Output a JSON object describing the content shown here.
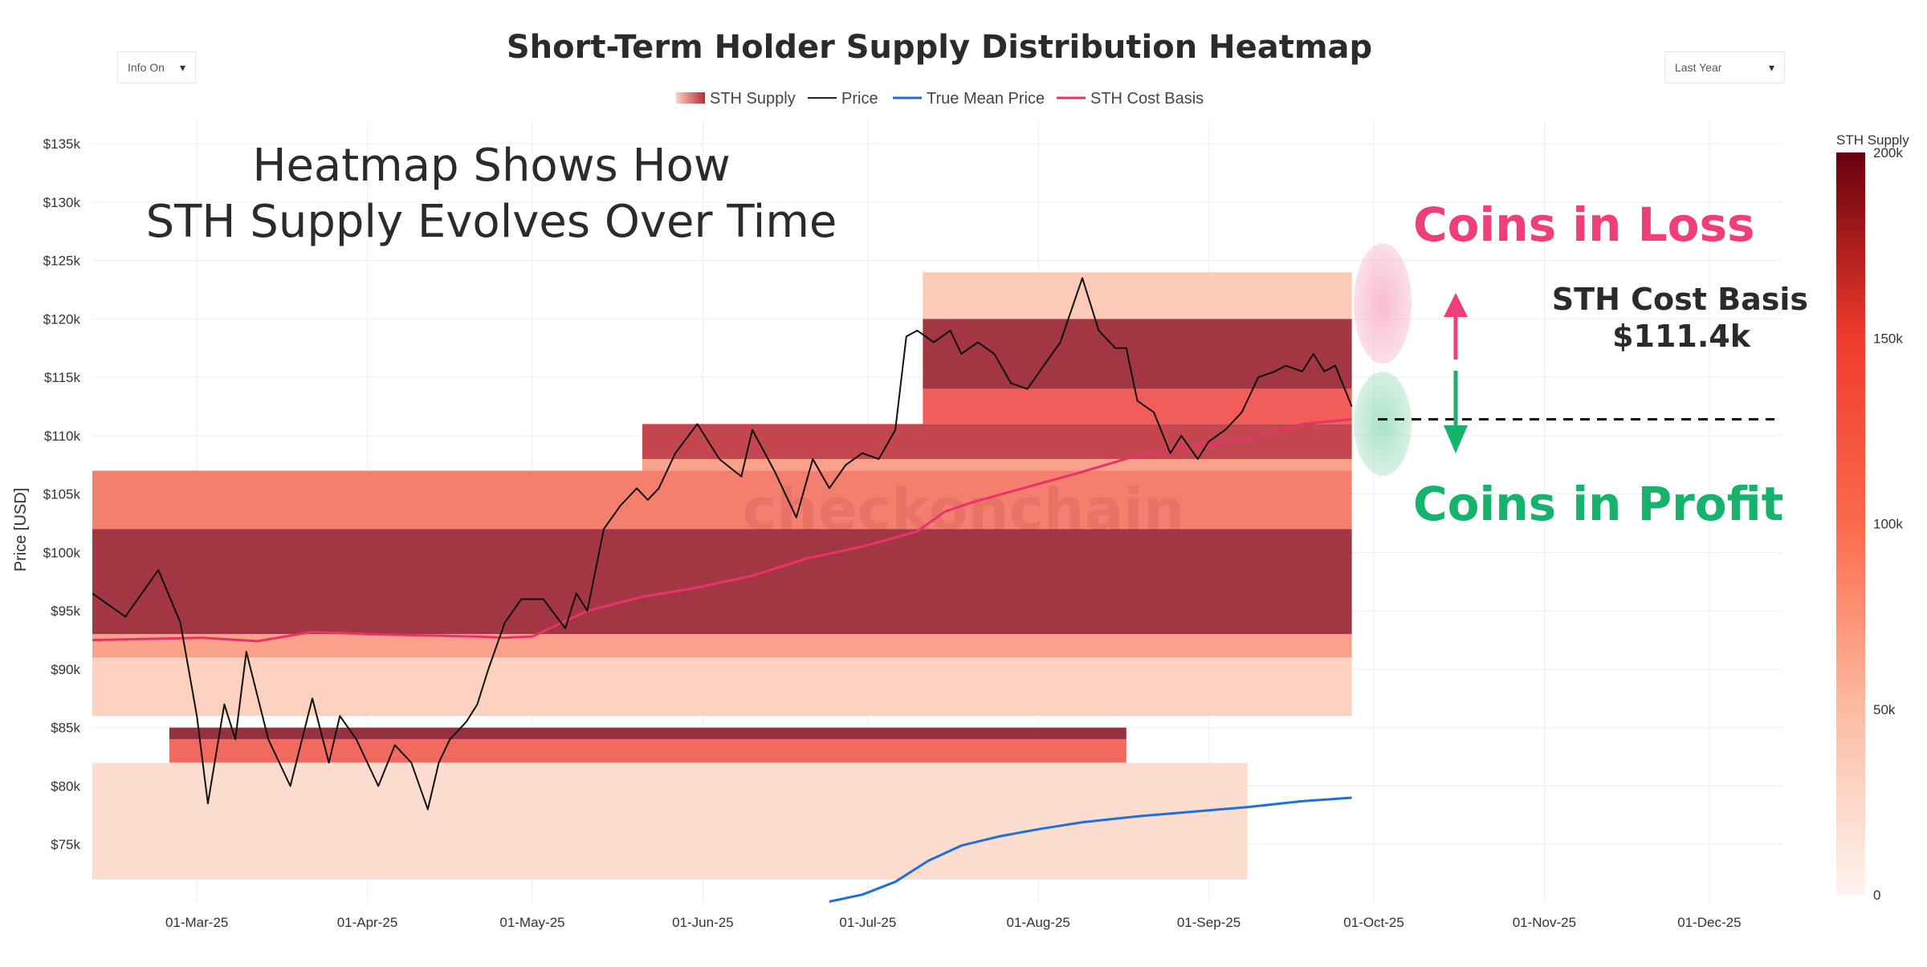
{
  "controls": {
    "info_toggle": "Info On",
    "range_select": "Last Year",
    "caret": "▾"
  },
  "chart_data": {
    "type": "heatmap",
    "title": "Short-Term Holder Supply Distribution Heatmap",
    "ylabel": "Price [USD]",
    "xlabel": "",
    "legend": [
      "STH Supply",
      "Price",
      "True Mean Price",
      "STH Cost Basis"
    ],
    "legend_position": "top-center",
    "colors": {
      "price": "#111111",
      "true_mean_price": "#1e6fd9",
      "sth_cost_basis": "#e8336a",
      "heat_low": "#fdeae2",
      "heat_mid": "#f0584f",
      "heat_high": "#8b1d2c",
      "loss": "#ef3f76",
      "profit": "#16b36d"
    },
    "ylim": [
      70000,
      137000
    ],
    "y_ticks": [
      {
        "value": 75000,
        "label": "$75k"
      },
      {
        "value": 80000,
        "label": "$80k"
      },
      {
        "value": 85000,
        "label": "$85k"
      },
      {
        "value": 90000,
        "label": "$90k"
      },
      {
        "value": 95000,
        "label": "$95k"
      },
      {
        "value": 100000,
        "label": "$100k"
      },
      {
        "value": 105000,
        "label": "$105k"
      },
      {
        "value": 110000,
        "label": "$110k"
      },
      {
        "value": 115000,
        "label": "$115k"
      },
      {
        "value": 120000,
        "label": "$120k"
      },
      {
        "value": 125000,
        "label": "$125k"
      },
      {
        "value": 130000,
        "label": "$130k"
      },
      {
        "value": 135000,
        "label": "$135k"
      }
    ],
    "x_range_days": [
      0,
      306
    ],
    "x_ticks": [
      {
        "day": 19,
        "label": "01-Mar-25"
      },
      {
        "day": 50,
        "label": "01-Apr-25"
      },
      {
        "day": 80,
        "label": "01-May-25"
      },
      {
        "day": 111,
        "label": "01-Jun-25"
      },
      {
        "day": 141,
        "label": "01-Jul-25"
      },
      {
        "day": 172,
        "label": "01-Aug-25"
      },
      {
        "day": 203,
        "label": "01-Sep-25"
      },
      {
        "day": 233,
        "label": "01-Oct-25"
      },
      {
        "day": 264,
        "label": "01-Nov-25"
      },
      {
        "day": 294,
        "label": "01-Dec-25"
      }
    ],
    "colorbar": {
      "title": "STH Supply",
      "range": [
        0,
        200000
      ],
      "ticks": [
        {
          "value": 0,
          "label": "0"
        },
        {
          "value": 50000,
          "label": "50k"
        },
        {
          "value": 100000,
          "label": "100k"
        },
        {
          "value": 150000,
          "label": "150k"
        },
        {
          "value": 200000,
          "label": "200k"
        }
      ]
    },
    "heatmap_bands": [
      {
        "from_day": 0,
        "to_day": 229,
        "low": 102000,
        "high": 107000,
        "supply": 90000
      },
      {
        "from_day": 0,
        "to_day": 229,
        "low": 93000,
        "high": 102000,
        "supply": 180000
      },
      {
        "from_day": 0,
        "to_day": 229,
        "low": 91000,
        "high": 93000,
        "supply": 60000
      },
      {
        "from_day": 0,
        "to_day": 229,
        "low": 86000,
        "high": 91000,
        "supply": 20000
      },
      {
        "from_day": 14,
        "to_day": 188,
        "low": 84000,
        "high": 85000,
        "supply": 190000
      },
      {
        "from_day": 14,
        "to_day": 188,
        "low": 82000,
        "high": 84000,
        "supply": 110000
      },
      {
        "from_day": 0,
        "to_day": 210,
        "low": 72000,
        "high": 82000,
        "supply": 12000
      },
      {
        "from_day": 100,
        "to_day": 229,
        "low": 108000,
        "high": 111000,
        "supply": 150000
      },
      {
        "from_day": 100,
        "to_day": 229,
        "low": 107000,
        "high": 108000,
        "supply": 60000
      },
      {
        "from_day": 151,
        "to_day": 229,
        "low": 114000,
        "high": 120000,
        "supply": 180000
      },
      {
        "from_day": 151,
        "to_day": 229,
        "low": 111000,
        "high": 114000,
        "supply": 120000
      },
      {
        "from_day": 151,
        "to_day": 229,
        "low": 120000,
        "high": 124000,
        "supply": 25000
      }
    ],
    "price": {
      "days": [
        0,
        6,
        12,
        16,
        19,
        21,
        24,
        26,
        28,
        32,
        36,
        40,
        43,
        45,
        48,
        52,
        55,
        58,
        61,
        63,
        65,
        68,
        70,
        72,
        75,
        78,
        82,
        86,
        88,
        90,
        93,
        96,
        99,
        101,
        103,
        106,
        110,
        114,
        118,
        120,
        124,
        128,
        131,
        134,
        137,
        140,
        143,
        146,
        148,
        150,
        153,
        156,
        158,
        161,
        164,
        167,
        170,
        173,
        176,
        180,
        183,
        186,
        188,
        190,
        193,
        196,
        198,
        201,
        203,
        206,
        209,
        212,
        215,
        217,
        220,
        222,
        224,
        226,
        229
      ],
      "values": [
        96500,
        94500,
        98500,
        94000,
        86000,
        78500,
        87000,
        84000,
        91500,
        84000,
        80000,
        87500,
        82000,
        86000,
        84000,
        80000,
        83500,
        82000,
        78000,
        82000,
        84000,
        85500,
        87000,
        90000,
        94000,
        96000,
        96000,
        93500,
        96500,
        95000,
        102000,
        104000,
        105500,
        104500,
        105500,
        108500,
        111000,
        108000,
        106500,
        110500,
        107000,
        103000,
        108000,
        105500,
        107500,
        108500,
        108000,
        110500,
        118500,
        119000,
        118000,
        119000,
        117000,
        118000,
        117000,
        114500,
        114000,
        116000,
        118000,
        123500,
        119000,
        117500,
        117500,
        113000,
        112000,
        108500,
        110000,
        108000,
        109500,
        110500,
        112000,
        115000,
        115500,
        116000,
        115500,
        117000,
        115500,
        116000,
        112500
      ]
    },
    "sth_cost_basis": {
      "days": [
        0,
        20,
        30,
        40,
        50,
        60,
        70,
        75,
        80,
        90,
        100,
        110,
        120,
        130,
        140,
        150,
        155,
        160,
        170,
        180,
        190,
        200,
        210,
        220,
        229
      ],
      "values": [
        92500,
        92700,
        92400,
        93200,
        93000,
        92900,
        92800,
        92700,
        92800,
        95000,
        96200,
        97000,
        98000,
        99500,
        100500,
        101800,
        103500,
        104300,
        105600,
        106900,
        108300,
        109100,
        109700,
        111000,
        111400
      ]
    },
    "true_mean_price": {
      "days": [
        134,
        140,
        146,
        152,
        158,
        165,
        172,
        180,
        190,
        200,
        210,
        220,
        229
      ],
      "values": [
        70100,
        70700,
        71800,
        73600,
        74900,
        75700,
        76300,
        76900,
        77400,
        77800,
        78200,
        78700,
        79000
      ]
    },
    "annotations": {
      "headline_line1": "Heatmap Shows How",
      "headline_line2": "STH Supply Evolves Over Time",
      "loss": "Coins in Loss",
      "profit": "Coins in Profit",
      "cost_basis_label": "STH Cost Basis",
      "cost_basis_value": "$111.4k",
      "cost_basis_level": 111400,
      "watermark": "checkonchain"
    }
  }
}
